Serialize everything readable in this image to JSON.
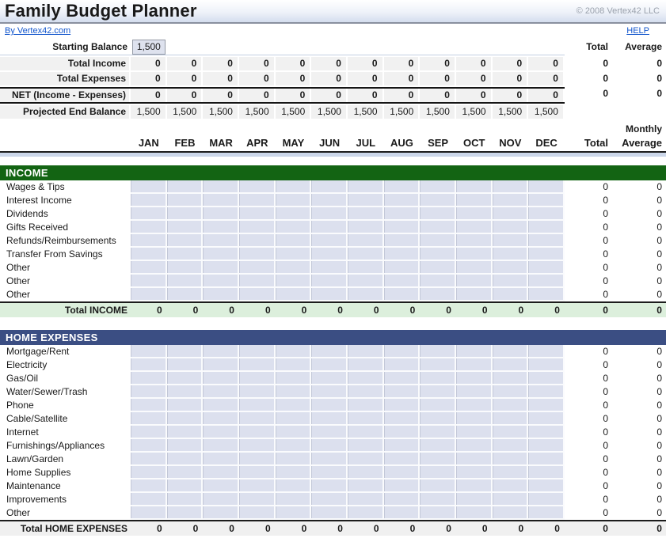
{
  "header": {
    "title": "Family Budget Planner",
    "copyright": "© 2008 Vertex42 LLC",
    "by_link": "By Vertex42.com",
    "help_link": "HELP"
  },
  "columns": {
    "months": [
      "JAN",
      "FEB",
      "MAR",
      "APR",
      "MAY",
      "JUN",
      "JUL",
      "AUG",
      "SEP",
      "OCT",
      "NOV",
      "DEC"
    ],
    "total_label": "Total",
    "average_label": "Average",
    "monthly_label": "Monthly"
  },
  "summary": {
    "starting_balance_label": "Starting Balance",
    "starting_balance_value": "1,500",
    "rows": [
      {
        "label": "Total Income",
        "values": [
          "0",
          "0",
          "0",
          "0",
          "0",
          "0",
          "0",
          "0",
          "0",
          "0",
          "0",
          "0"
        ],
        "total": "0",
        "average": "0",
        "bordered": false,
        "bold_values": true
      },
      {
        "label": "Total Expenses",
        "values": [
          "0",
          "0",
          "0",
          "0",
          "0",
          "0",
          "0",
          "0",
          "0",
          "0",
          "0",
          "0"
        ],
        "total": "0",
        "average": "0",
        "bordered": false,
        "bold_values": true
      },
      {
        "label": "NET (Income - Expenses)",
        "values": [
          "0",
          "0",
          "0",
          "0",
          "0",
          "0",
          "0",
          "0",
          "0",
          "0",
          "0",
          "0"
        ],
        "total": "0",
        "average": "0",
        "bordered": true,
        "bold_values": true
      },
      {
        "label": "Projected End Balance",
        "values": [
          "1,500",
          "1,500",
          "1,500",
          "1,500",
          "1,500",
          "1,500",
          "1,500",
          "1,500",
          "1,500",
          "1,500",
          "1,500",
          "1,500"
        ],
        "total": "",
        "average": "",
        "bordered": false,
        "bold_values": false
      }
    ]
  },
  "sections": [
    {
      "name": "INCOME",
      "header_bg": "#136413",
      "total_bg": "#dcefdc",
      "items": [
        {
          "label": "Wages & Tips",
          "total": "0",
          "average": "0"
        },
        {
          "label": "Interest Income",
          "total": "0",
          "average": "0"
        },
        {
          "label": "Dividends",
          "total": "0",
          "average": "0"
        },
        {
          "label": "Gifts Received",
          "total": "0",
          "average": "0"
        },
        {
          "label": "Refunds/Reimbursements",
          "total": "0",
          "average": "0"
        },
        {
          "label": "Transfer From Savings",
          "total": "0",
          "average": "0"
        },
        {
          "label": "Other",
          "total": "0",
          "average": "0"
        },
        {
          "label": "Other",
          "total": "0",
          "average": "0"
        },
        {
          "label": "Other",
          "total": "0",
          "average": "0"
        }
      ],
      "total_row": {
        "label": "Total INCOME",
        "values": [
          "0",
          "0",
          "0",
          "0",
          "0",
          "0",
          "0",
          "0",
          "0",
          "0",
          "0",
          "0"
        ],
        "total": "0",
        "average": "0"
      }
    },
    {
      "name": "HOME EXPENSES",
      "header_bg": "#3b4e83",
      "total_bg": "#f0f0f0",
      "items": [
        {
          "label": "Mortgage/Rent",
          "total": "0",
          "average": "0"
        },
        {
          "label": "Electricity",
          "total": "0",
          "average": "0"
        },
        {
          "label": "Gas/Oil",
          "total": "0",
          "average": "0"
        },
        {
          "label": "Water/Sewer/Trash",
          "total": "0",
          "average": "0"
        },
        {
          "label": "Phone",
          "total": "0",
          "average": "0"
        },
        {
          "label": "Cable/Satellite",
          "total": "0",
          "average": "0"
        },
        {
          "label": "Internet",
          "total": "0",
          "average": "0"
        },
        {
          "label": "Furnishings/Appliances",
          "total": "0",
          "average": "0"
        },
        {
          "label": "Lawn/Garden",
          "total": "0",
          "average": "0"
        },
        {
          "label": "Home Supplies",
          "total": "0",
          "average": "0"
        },
        {
          "label": "Maintenance",
          "total": "0",
          "average": "0"
        },
        {
          "label": "Improvements",
          "total": "0",
          "average": "0"
        },
        {
          "label": "Other",
          "total": "0",
          "average": "0"
        }
      ],
      "total_row": {
        "label": "Total HOME EXPENSES",
        "values": [
          "0",
          "0",
          "0",
          "0",
          "0",
          "0",
          "0",
          "0",
          "0",
          "0",
          "0",
          "0"
        ],
        "total": "0",
        "average": "0"
      }
    }
  ],
  "colors": {
    "income_header_bg": "#136413",
    "expenses_header_bg": "#3b4e83",
    "input_cell_bg": "#dce0ee",
    "income_total_bg": "#dcefdc",
    "expenses_total_bg": "#f0f0f0",
    "summary_band_bg": "#f1f1f1",
    "link_color": "#1155cc",
    "title_band_bg": "#d4ddee"
  }
}
